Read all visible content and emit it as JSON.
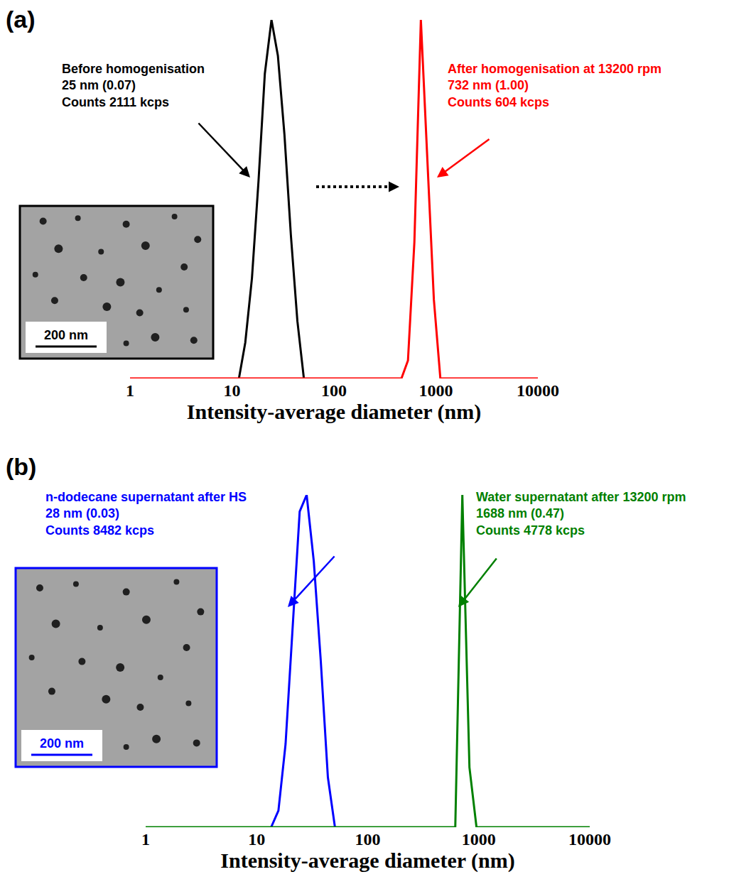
{
  "chart_data": [
    {
      "panel": "(a)",
      "type": "line",
      "xlabel": "Intensity-average diameter (nm)",
      "log": "x",
      "xlim": [
        1,
        10000
      ],
      "xticks": [
        1,
        10,
        100,
        1000,
        10000
      ],
      "ylim": [
        0,
        100
      ],
      "tick_labels": "x",
      "grid": false,
      "series": [
        {
          "label": [
            "Before homogenisation",
            "25 nm (0.07)",
            "Counts 2111 kcps"
          ],
          "color": "#000000",
          "x": [
            11.7,
            13.5,
            15.7,
            18.2,
            21,
            24.4,
            28.2,
            32.7,
            37.8,
            43.8,
            50.7
          ],
          "values": [
            0,
            10,
            28,
            55,
            85,
            100,
            90,
            68,
            40,
            16,
            0
          ]
        },
        {
          "label": [
            "After homogenisation at 13200 rpm",
            "732 nm (1.00)",
            "Counts 604 kcps"
          ],
          "color": "#ff0000",
          "x": [
            1,
            459,
            532,
            615,
            712,
            825,
            955,
            1106,
            10000
          ],
          "values": [
            0,
            0,
            5,
            38,
            100,
            60,
            22,
            0,
            0
          ]
        }
      ],
      "inset": {
        "scale_bar": "200 nm",
        "color": "#000000"
      }
    },
    {
      "panel": "(b)",
      "type": "line",
      "xlabel": "Intensity-average diameter (nm)",
      "log": "x",
      "xlim": [
        1,
        10000
      ],
      "xticks": [
        1,
        10,
        100,
        1000,
        10000
      ],
      "ylim": [
        0,
        100
      ],
      "tick_labels": "x",
      "grid": false,
      "series": [
        {
          "label": [
            "n-dodecane supernatant after HS",
            "28 nm (0.03)",
            "Counts 8482 kcps"
          ],
          "color": "#0000ff",
          "x": [
            13.5,
            15.7,
            18.2,
            21,
            24.4,
            28.2,
            32.7,
            37.8,
            43.8,
            50.7
          ],
          "values": [
            0,
            5,
            25,
            58,
            95,
            100,
            80,
            50,
            15,
            0
          ]
        },
        {
          "label": [
            "Water supernatant after 13200 rpm",
            "1688 nm (0.47)",
            "Counts 4778 kcps"
          ],
          "color": "#008000",
          "x": [
            1,
            615,
            712,
            825,
            955,
            10000
          ],
          "values": [
            0,
            0,
            100,
            18,
            0,
            0
          ]
        }
      ],
      "inset": {
        "scale_bar": "200 nm",
        "color": "#0000ff"
      }
    }
  ]
}
